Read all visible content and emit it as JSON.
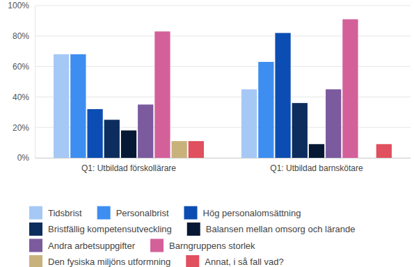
{
  "chart_data": {
    "type": "bar",
    "categories": [
      "Q1: Utbildad förskollärare",
      "Q1: Utbildad barnskötare"
    ],
    "series": [
      {
        "name": "Tidsbrist",
        "color": "#a6c8f5",
        "values": [
          68,
          45
        ]
      },
      {
        "name": "Personalbrist",
        "color": "#3d8ef0",
        "values": [
          68,
          63
        ]
      },
      {
        "name": "Hög personalomsättning",
        "color": "#0b4db3",
        "values": [
          32,
          82
        ]
      },
      {
        "name": "Bristfällig kompetensutveckling",
        "color": "#0d2d5e",
        "values": [
          25,
          36
        ]
      },
      {
        "name": "Balansen mellan omsorg och lärande",
        "color": "#061833",
        "values": [
          18,
          9
        ]
      },
      {
        "name": "Andra arbetsuppgifter",
        "color": "#7b5a9e",
        "values": [
          35,
          45
        ]
      },
      {
        "name": "Barngruppens storlek",
        "color": "#d4609a",
        "values": [
          83,
          91
        ]
      },
      {
        "name": "Den fysiska miljöns utformning",
        "color": "#c8b27c",
        "values": [
          11,
          0
        ]
      },
      {
        "name": "Annat, i så fall vad?",
        "color": "#e0505e",
        "values": [
          11,
          9
        ]
      }
    ],
    "ylim": [
      0,
      100
    ],
    "yticks": [
      {
        "value": 0,
        "label": "0%"
      },
      {
        "value": 20,
        "label": "20%"
      },
      {
        "value": 40,
        "label": "40%"
      },
      {
        "value": 60,
        "label": "60%"
      },
      {
        "value": 80,
        "label": "80%"
      },
      {
        "value": 100,
        "label": "100%"
      }
    ],
    "grid": true,
    "legend": "bottom"
  }
}
